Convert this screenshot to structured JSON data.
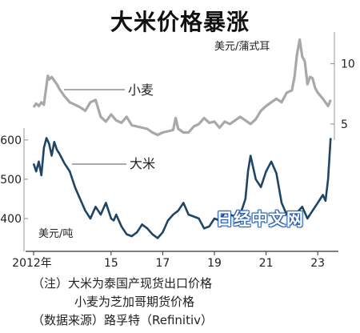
{
  "title": "大米价格暴涨",
  "watermark": "日经中文网",
  "notes": [
    "（注）大米为泰国产现货出口价格",
    "小麦为芝加哥期货价格",
    "（数据来源）路孚特（Refinitiv）"
  ],
  "chart_data": {
    "type": "line",
    "x_ticks": [
      {
        "value": 2012,
        "label": "2012年"
      },
      {
        "value": 2015,
        "label": "15"
      },
      {
        "value": 2017,
        "label": "17"
      },
      {
        "value": 2019,
        "label": "19"
      },
      {
        "value": 2021,
        "label": "21"
      },
      {
        "value": 2023,
        "label": "23"
      }
    ],
    "xlim": [
      2012,
      2023.8
    ],
    "axes": {
      "left": {
        "unit_label": "美元/吨",
        "ticks": [
          400,
          500,
          600
        ],
        "range": [
          345,
          620
        ]
      },
      "right": {
        "unit_label": "美元/蒲式耳",
        "ticks": [
          5,
          10
        ],
        "range": [
          4,
          12.5
        ]
      }
    },
    "series": [
      {
        "name": "小麦",
        "axis": "right",
        "color": "#a8a8a8",
        "x": [
          2012.0,
          2012.1,
          2012.2,
          2012.3,
          2012.4,
          2012.5,
          2012.55,
          2012.6,
          2012.7,
          2012.8,
          2012.9,
          2013.0,
          2013.2,
          2013.4,
          2013.6,
          2013.8,
          2014.0,
          2014.2,
          2014.4,
          2014.6,
          2014.8,
          2015.0,
          2015.2,
          2015.4,
          2015.6,
          2015.8,
          2016.0,
          2016.2,
          2016.4,
          2016.6,
          2016.8,
          2017.0,
          2017.2,
          2017.4,
          2017.5,
          2017.6,
          2017.8,
          2018.0,
          2018.2,
          2018.4,
          2018.6,
          2018.8,
          2019.0,
          2019.2,
          2019.4,
          2019.6,
          2019.8,
          2020.0,
          2020.2,
          2020.4,
          2020.6,
          2020.8,
          2021.0,
          2021.2,
          2021.4,
          2021.6,
          2021.8,
          2022.0,
          2022.1,
          2022.2,
          2022.3,
          2022.4,
          2022.5,
          2022.6,
          2022.7,
          2022.8,
          2022.9,
          2023.0,
          2023.2,
          2023.4,
          2023.5
        ],
        "y": [
          6.4,
          6.7,
          6.5,
          6.8,
          6.6,
          8.2,
          9.0,
          8.7,
          8.9,
          8.6,
          8.3,
          7.9,
          7.3,
          6.8,
          6.6,
          6.4,
          6.1,
          6.8,
          7.0,
          5.6,
          5.2,
          5.8,
          5.3,
          5.1,
          5.6,
          4.9,
          4.8,
          4.7,
          4.6,
          4.3,
          4.1,
          4.3,
          4.4,
          4.5,
          5.5,
          4.6,
          4.3,
          4.3,
          4.8,
          5.0,
          5.5,
          5.1,
          5.2,
          4.7,
          5.2,
          5.0,
          5.3,
          5.6,
          5.3,
          5.0,
          5.4,
          6.1,
          6.5,
          6.8,
          7.1,
          6.8,
          7.6,
          7.8,
          8.9,
          10.8,
          12.0,
          10.6,
          10.2,
          8.3,
          8.9,
          8.8,
          8.0,
          7.6,
          7.1,
          6.5,
          7.0
        ]
      },
      {
        "name": "大米",
        "axis": "left",
        "color": "#1f4565",
        "x": [
          2012.0,
          2012.1,
          2012.2,
          2012.3,
          2012.4,
          2012.5,
          2012.6,
          2012.7,
          2012.8,
          2012.9,
          2013.0,
          2013.2,
          2013.4,
          2013.6,
          2013.8,
          2014.0,
          2014.2,
          2014.4,
          2014.6,
          2014.8,
          2015.0,
          2015.1,
          2015.2,
          2015.4,
          2015.6,
          2015.8,
          2016.0,
          2016.2,
          2016.4,
          2016.6,
          2016.8,
          2017.0,
          2017.2,
          2017.4,
          2017.6,
          2017.8,
          2018.0,
          2018.2,
          2018.4,
          2018.6,
          2018.8,
          2019.0,
          2019.2,
          2019.4,
          2019.6,
          2019.8,
          2020.0,
          2020.2,
          2020.3,
          2020.4,
          2020.6,
          2020.8,
          2021.0,
          2021.2,
          2021.4,
          2021.6,
          2021.8,
          2022.0,
          2022.2,
          2022.4,
          2022.6,
          2022.8,
          2023.0,
          2023.2,
          2023.3,
          2023.4,
          2023.5
        ],
        "y": [
          540,
          520,
          545,
          510,
          580,
          605,
          590,
          560,
          595,
          575,
          565,
          540,
          520,
          480,
          450,
          420,
          400,
          430,
          410,
          440,
          400,
          395,
          410,
          380,
          360,
          355,
          365,
          385,
          375,
          360,
          350,
          365,
          395,
          410,
          420,
          440,
          410,
          405,
          400,
          375,
          380,
          400,
          395,
          415,
          410,
          405,
          410,
          450,
          520,
          560,
          500,
          480,
          520,
          545,
          515,
          440,
          410,
          400,
          415,
          430,
          400,
          420,
          440,
          460,
          445,
          500,
          605
        ]
      }
    ]
  }
}
